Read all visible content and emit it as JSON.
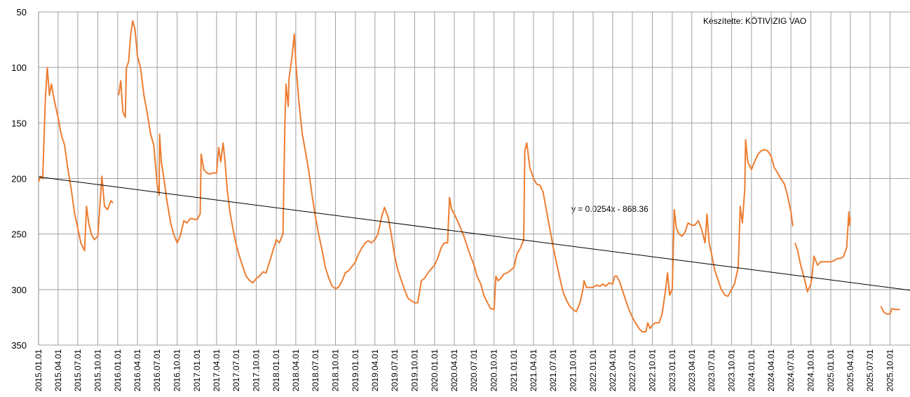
{
  "chart_data": {
    "type": "line",
    "annotations": [
      "Készítette: KÖTIVIZIG VAO"
    ],
    "trendline": {
      "label": "y = 0.0254x - 868.36",
      "x": [
        "2015.01.01",
        "2026.01.01"
      ],
      "values": [
        198.5,
        300.6
      ],
      "color": "#000000"
    },
    "ylim": [
      350,
      50
    ],
    "yticks": [
      50,
      100,
      150,
      200,
      250,
      300,
      350
    ],
    "y_inverted": true,
    "xlim": [
      "2015.01.01",
      "2026.01.01"
    ],
    "xticks": [
      "2015.01.01",
      "2015.04.01",
      "2015.07.01",
      "2015.10.01",
      "2016.01.01",
      "2016.04.01",
      "2016.07.01",
      "2016.10.01",
      "2017.01.01",
      "2017.04.01",
      "2017.07.01",
      "2017.10.01",
      "2018.01.01",
      "2018.04.01",
      "2018.07.01",
      "2018.10.01",
      "2019.01.01",
      "2019.04.01",
      "2019.07.01",
      "2019.10.01",
      "2020.01.01",
      "2020.04.01",
      "2020.07.01",
      "2020.10.01",
      "2021.01.01",
      "2021.04.01",
      "2021.07.01",
      "2021.10.01",
      "2022.01.01",
      "2022.04.01",
      "2022.07.01",
      "2022.10.01",
      "2023.01.01",
      "2023.04.01",
      "2023.07.01",
      "2023.10.01",
      "2024.01.01",
      "2024.04.01",
      "2024.07.01",
      "2024.10.01",
      "2025.01.01",
      "2025.04.01",
      "2025.07.01",
      "2025.10.01"
    ],
    "grid": true,
    "series": [
      {
        "color": "#ed7d31",
        "x": [
          "2015.01.01",
          "2015.01.10",
          "2015.01.20",
          "2015.02.01",
          "2015.02.10",
          "2015.02.20",
          "2015.03.01",
          "2015.03.15",
          "2015.04.01",
          "2015.04.15",
          "2015.05.01",
          "2015.05.15",
          "2015.06.01",
          "2015.06.15",
          "2015.07.01",
          "2015.07.15",
          "2015.08.01",
          "2015.08.10",
          "2015.08.20",
          "2015.09.01",
          "2015.09.15",
          "2015.10.01",
          "2015.10.20",
          "2015.11.01",
          "2015.11.15",
          "2015.12.01",
          "2015.12.10",
          "2015.12.20",
          "2016.01.05",
          "2016.01.15",
          "2016.01.25",
          "2016.02.05",
          "2016.02.10",
          "2016.02.20",
          "2016.03.01",
          "2016.03.10",
          "2016.03.20",
          "2016.04.01",
          "2016.04.15",
          "2016.05.01",
          "2016.05.15",
          "2016.06.01",
          "2016.06.15",
          "2016.07.01",
          "2016.07.10",
          "2016.07.12",
          "2016.07.20",
          "2016.08.01",
          "2016.08.15",
          "2016.09.01",
          "2016.09.15",
          "2016.10.01",
          "2016.10.15",
          "2016.11.01",
          "2016.11.15",
          "2016.12.01",
          "2017.01.01",
          "2017.01.15",
          "2017.01.20",
          "2017.02.01",
          "2017.02.15",
          "2017.03.01",
          "2017.03.15",
          "2017.04.01",
          "2017.04.10",
          "2017.04.20",
          "2017.05.01",
          "2017.05.10",
          "2017.05.20",
          "2017.06.01",
          "2017.06.15",
          "2017.07.01",
          "2017.07.15",
          "2017.08.01",
          "2017.08.15",
          "2017.09.01",
          "2017.09.15",
          "2017.10.01",
          "2017.10.15",
          "2017.11.01",
          "2017.11.15",
          "2017.12.01",
          "2018.01.01",
          "2018.01.15",
          "2018.02.01",
          "2018.02.10",
          "2018.02.15",
          "2018.02.25",
          "2018.03.01",
          "2018.03.15",
          "2018.03.25",
          "2018.04.01",
          "2018.04.15",
          "2018.05.01",
          "2018.05.15",
          "2018.06.01",
          "2018.06.15",
          "2018.07.01",
          "2018.07.15",
          "2018.08.01",
          "2018.08.15",
          "2018.09.01",
          "2018.09.15",
          "2018.10.01",
          "2018.10.15",
          "2018.11.01",
          "2018.11.15",
          "2018.12.01",
          "2019.01.01",
          "2019.01.15",
          "2019.02.01",
          "2019.02.15",
          "2019.03.01",
          "2019.03.15",
          "2019.04.01",
          "2019.04.15",
          "2019.05.01",
          "2019.05.15",
          "2019.06.01",
          "2019.06.15",
          "2019.07.01",
          "2019.07.15",
          "2019.08.01",
          "2019.08.15",
          "2019.09.01",
          "2019.09.15",
          "2019.10.01",
          "2019.10.15",
          "2019.11.01",
          "2019.11.15",
          "2019.12.01",
          "2020.01.01",
          "2020.01.15",
          "2020.02.01",
          "2020.02.15",
          "2020.03.01",
          "2020.03.10",
          "2020.03.20",
          "2020.04.01",
          "2020.04.15",
          "2020.05.01",
          "2020.05.15",
          "2020.06.01",
          "2020.06.15",
          "2020.07.01",
          "2020.07.15",
          "2020.08.01",
          "2020.08.15",
          "2020.09.01",
          "2020.09.15",
          "2020.10.01",
          "2020.10.10",
          "2020.10.20",
          "2020.11.01",
          "2020.11.15",
          "2020.12.01",
          "2021.01.01",
          "2021.01.15",
          "2021.02.01",
          "2021.02.15",
          "2021.02.20",
          "2021.03.01",
          "2021.03.15",
          "2021.04.01",
          "2021.04.15",
          "2021.05.01",
          "2021.05.15",
          "2021.06.01",
          "2021.06.15",
          "2021.07.01",
          "2021.07.15",
          "2021.08.01",
          "2021.08.15",
          "2021.09.01",
          "2021.09.15",
          "2021.10.01",
          "2021.10.15",
          "2021.11.01",
          "2021.11.15",
          "2021.11.20",
          "2021.12.01",
          "2022.01.01",
          "2022.01.15",
          "2022.02.01",
          "2022.02.15",
          "2022.03.01",
          "2022.03.15",
          "2022.04.01",
          "2022.04.10",
          "2022.04.20",
          "2022.05.01",
          "2022.05.15",
          "2022.06.01",
          "2022.06.15",
          "2022.07.01",
          "2022.07.15",
          "2022.08.01",
          "2022.08.15",
          "2022.09.01",
          "2022.09.10",
          "2022.09.20",
          "2022.10.01",
          "2022.10.15",
          "2022.11.01",
          "2022.11.15",
          "2022.12.01",
          "2022.12.10",
          "2022.12.20",
          "2023.01.01",
          "2023.01.10",
          "2023.01.20",
          "2023.02.01",
          "2023.02.15",
          "2023.03.01",
          "2023.03.15",
          "2023.04.01",
          "2023.04.15",
          "2023.05.01",
          "2023.05.15",
          "2023.06.01",
          "2023.06.10",
          "2023.06.20",
          "2023.07.01",
          "2023.07.15",
          "2023.08.01",
          "2023.08.15",
          "2023.09.01",
          "2023.09.15",
          "2023.10.01",
          "2023.10.15",
          "2023.11.01",
          "2023.11.10",
          "2023.11.20",
          "2023.12.01",
          "2023.12.05",
          "2023.12.15",
          "2024.01.01",
          "2024.01.15",
          "2024.02.01",
          "2024.02.15",
          "2024.03.01",
          "2024.03.15",
          "2024.04.01",
          "2024.04.15",
          "2024.05.01",
          "2024.05.15",
          "2024.06.01",
          "2024.06.15",
          "2024.07.01",
          "2024.07.10",
          "2024.07.15",
          "2024.07.20",
          "2024.08.01",
          "2024.08.15",
          "2024.09.01",
          "2024.09.15",
          "2024.10.01",
          "2024.10.05",
          "2024.10.15",
          "2024.11.01",
          "2024.11.15",
          "2024.12.01",
          "2025.01.01",
          "2025.01.15",
          "2025.02.01",
          "2025.02.15",
          "2025.03.01",
          "2025.03.15",
          "2025.03.25",
          "2025.03.28",
          "2025.04.01",
          "2025.06.01",
          "2025.08.20",
          "2025.09.01",
          "2025.09.15",
          "2025.10.01",
          "2025.10.10",
          "2025.10.25",
          "2025.11.15"
        ],
        "values": [
          203,
          198,
          200,
          130,
          100,
          125,
          115,
          130,
          145,
          160,
          170,
          190,
          210,
          230,
          245,
          258,
          265,
          225,
          240,
          250,
          255,
          252,
          198,
          225,
          228,
          220,
          222,
          null,
          125,
          112,
          140,
          145,
          100,
          95,
          70,
          58,
          65,
          90,
          100,
          125,
          140,
          160,
          170,
          205,
          215,
          160,
          185,
          200,
          220,
          240,
          250,
          258,
          252,
          238,
          240,
          236,
          237,
          232,
          178,
          192,
          195,
          196,
          195,
          195,
          172,
          185,
          168,
          185,
          210,
          230,
          245,
          260,
          270,
          280,
          288,
          292,
          294,
          290,
          288,
          284,
          285,
          275,
          255,
          258,
          250,
          150,
          115,
          135,
          110,
          90,
          70,
          95,
          130,
          160,
          175,
          195,
          215,
          235,
          250,
          265,
          280,
          290,
          297,
          299,
          298,
          292,
          285,
          283,
          275,
          268,
          262,
          258,
          256,
          258,
          255,
          250,
          235,
          226,
          235,
          250,
          270,
          282,
          292,
          300,
          308,
          310,
          312,
          312,
          292,
          290,
          285,
          278,
          272,
          262,
          258,
          258,
          217,
          228,
          232,
          238,
          245,
          252,
          262,
          270,
          278,
          288,
          295,
          305,
          312,
          317,
          318,
          288,
          292,
          290,
          286,
          285,
          280,
          268,
          262,
          255,
          175,
          168,
          190,
          200,
          205,
          206,
          212,
          230,
          245,
          262,
          275,
          290,
          302,
          310,
          315,
          318,
          320,
          312,
          300,
          292,
          298,
          298,
          296,
          297,
          295,
          297,
          294,
          295,
          288,
          288,
          292,
          300,
          310,
          318,
          325,
          330,
          335,
          338,
          338,
          330,
          335,
          332,
          330,
          330,
          322,
          300,
          285,
          305,
          300,
          228,
          245,
          250,
          252,
          248,
          240,
          242,
          242,
          238,
          245,
          258,
          232,
          258,
          268,
          282,
          292,
          300,
          305,
          306,
          300,
          295,
          280,
          225,
          240,
          210,
          165,
          185,
          192,
          185,
          178,
          175,
          174,
          175,
          180,
          190,
          195,
          200,
          205,
          215,
          230,
          243,
          null,
          258,
          265,
          278,
          290,
          302,
          295,
          290,
          270,
          278,
          275,
          275,
          275,
          274,
          272,
          272,
          270,
          262,
          230,
          242,
          235,
          null,
          315,
          320,
          322,
          322,
          317,
          318,
          318
        ]
      }
    ]
  }
}
